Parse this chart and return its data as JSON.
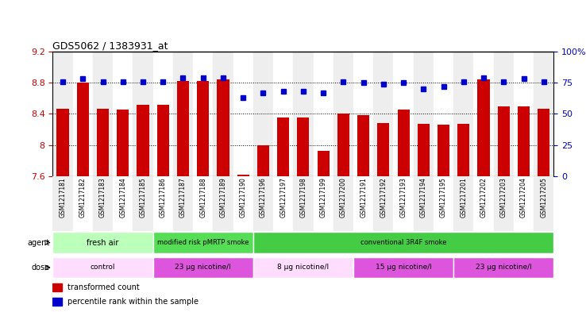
{
  "title": "GDS5062 / 1383931_at",
  "samples": [
    "GSM1217181",
    "GSM1217182",
    "GSM1217183",
    "GSM1217184",
    "GSM1217185",
    "GSM1217186",
    "GSM1217187",
    "GSM1217188",
    "GSM1217189",
    "GSM1217190",
    "GSM1217196",
    "GSM1217197",
    "GSM1217198",
    "GSM1217199",
    "GSM1217200",
    "GSM1217191",
    "GSM1217192",
    "GSM1217193",
    "GSM1217194",
    "GSM1217195",
    "GSM1217201",
    "GSM1217202",
    "GSM1217203",
    "GSM1217204",
    "GSM1217205"
  ],
  "bar_values": [
    8.47,
    8.8,
    8.47,
    8.46,
    8.52,
    8.52,
    8.82,
    8.82,
    8.84,
    7.62,
    8.0,
    8.35,
    8.35,
    7.93,
    8.4,
    8.38,
    8.28,
    8.46,
    8.27,
    8.26,
    8.27,
    8.84,
    8.5,
    8.5,
    8.47
  ],
  "dot_values": [
    76,
    78,
    76,
    76,
    76,
    76,
    79,
    79,
    79,
    63,
    67,
    68,
    68,
    67,
    76,
    75,
    74,
    75,
    70,
    72,
    76,
    79,
    76,
    78,
    76
  ],
  "ylim_left": [
    7.6,
    9.2
  ],
  "ylim_right": [
    0,
    100
  ],
  "yticks_left": [
    7.6,
    8.0,
    8.4,
    8.8,
    9.2
  ],
  "ytick_labels_left": [
    "7.6",
    "8",
    "8.4",
    "8.8",
    "9.2"
  ],
  "yticks_right": [
    0,
    25,
    50,
    75,
    100
  ],
  "ytick_labels_right": [
    "0",
    "25",
    "50",
    "75",
    "100%"
  ],
  "bar_color": "#cc0000",
  "dot_color": "#0000cc",
  "agent_groups": [
    {
      "label": "fresh air",
      "start": 0,
      "end": 5,
      "color": "#bbffbb"
    },
    {
      "label": "modified risk pMRTP smoke",
      "start": 5,
      "end": 10,
      "color": "#55dd55"
    },
    {
      "label": "conventional 3R4F smoke",
      "start": 10,
      "end": 25,
      "color": "#44cc44"
    }
  ],
  "dose_groups": [
    {
      "label": "control",
      "start": 0,
      "end": 5,
      "color": "#ffddff"
    },
    {
      "label": "23 µg nicotine/l",
      "start": 5,
      "end": 10,
      "color": "#dd55dd"
    },
    {
      "label": "8 µg nicotine/l",
      "start": 10,
      "end": 15,
      "color": "#ffddff"
    },
    {
      "label": "15 µg nicotine/l",
      "start": 15,
      "end": 20,
      "color": "#dd55dd"
    },
    {
      "label": "23 µg nicotine/l",
      "start": 20,
      "end": 25,
      "color": "#dd55dd"
    }
  ],
  "legend_items": [
    {
      "label": "transformed count",
      "color": "#cc0000"
    },
    {
      "label": "percentile rank within the sample",
      "color": "#0000cc"
    }
  ],
  "col_bg_even": "#eeeeee",
  "col_bg_odd": "#ffffff"
}
